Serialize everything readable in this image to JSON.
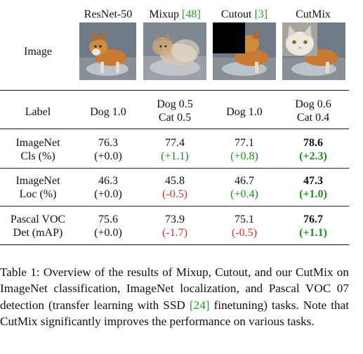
{
  "header": {
    "image_row_label": "Image",
    "columns": [
      {
        "name": "ResNet-50",
        "cite": ""
      },
      {
        "name": "Mixup ",
        "cite": "[48]"
      },
      {
        "name": "Cutout ",
        "cite": "[3]"
      },
      {
        "name": "CutMix",
        "cite": ""
      }
    ]
  },
  "label_row": {
    "label": "Label",
    "cells": [
      {
        "line1": "Dog 1.0",
        "line2": ""
      },
      {
        "line1": "Dog 0.5",
        "line2": "Cat 0.5"
      },
      {
        "line1": "Dog 1.0",
        "line2": ""
      },
      {
        "line1": "Dog 0.6",
        "line2": "Cat 0.4"
      }
    ]
  },
  "rows": [
    {
      "label_line1": "ImageNet",
      "label_line2": "Cls (%)",
      "cells": [
        {
          "value": "76.3",
          "delta": "(+0.0)",
          "delta_color": "black",
          "bold": false
        },
        {
          "value": "77.4",
          "delta": "(+1.1)",
          "delta_color": "green",
          "bold": false
        },
        {
          "value": "77.1",
          "delta": "(+0.8)",
          "delta_color": "green",
          "bold": false
        },
        {
          "value": "78.6",
          "delta": "(+2.3)",
          "delta_color": "green",
          "bold": true
        }
      ]
    },
    {
      "label_line1": "ImageNet",
      "label_line2": "Loc (%)",
      "cells": [
        {
          "value": "46.3",
          "delta": "(+0.0)",
          "delta_color": "black",
          "bold": false
        },
        {
          "value": "45.8",
          "delta": "(-0.5)",
          "delta_color": "red",
          "bold": false
        },
        {
          "value": "46.7",
          "delta": "(+0.4)",
          "delta_color": "green",
          "bold": false
        },
        {
          "value": "47.3",
          "delta": "(+1.0)",
          "delta_color": "green",
          "bold": true
        }
      ]
    },
    {
      "label_line1": "Pascal VOC",
      "label_line2": "Det (mAP)",
      "cells": [
        {
          "value": "75.6",
          "delta": "(+0.0)",
          "delta_color": "black",
          "bold": false
        },
        {
          "value": "73.9",
          "delta": "(-1.7)",
          "delta_color": "red",
          "bold": false
        },
        {
          "value": "75.1",
          "delta": "(-0.5)",
          "delta_color": "red",
          "bold": false
        },
        {
          "value": "76.7",
          "delta": "(+1.1)",
          "delta_color": "green",
          "bold": true
        }
      ]
    }
  ],
  "colors": {
    "green": "#1f8f1f",
    "red": "#d8322c",
    "cite": "#2a9d2a"
  },
  "caption": {
    "part1": "Table 1: Overview of the results of Mixup, Cutout, and our CutMix on ImageNet classification, ImageNet localization, and Pascal VOC 07 detection (transfer learning with SSD ",
    "cite": "[24]",
    "part2": " finetuning) tasks. Note that CutMix significantly improves the performance on various tasks."
  }
}
